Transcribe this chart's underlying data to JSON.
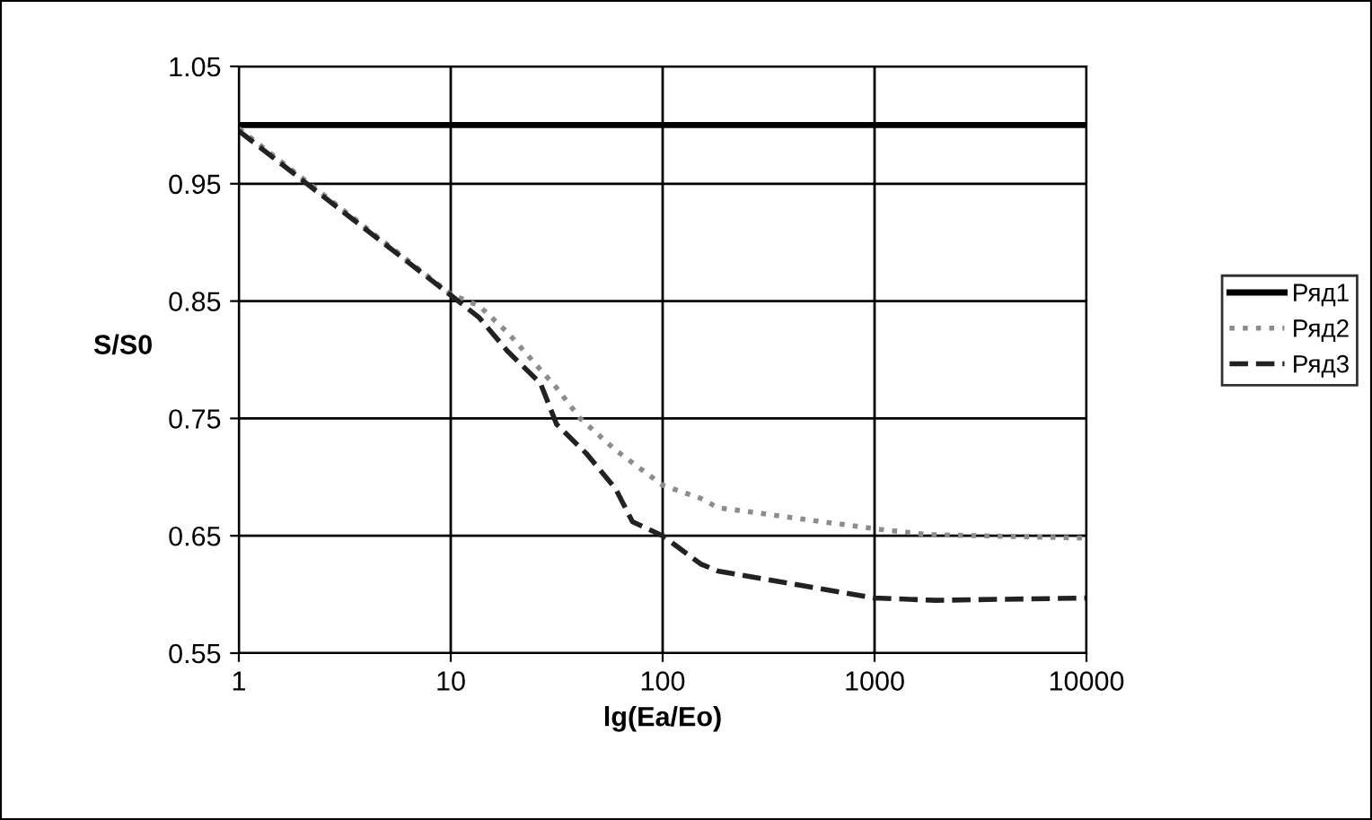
{
  "chart_data": {
    "type": "line",
    "xlabel": "lg(Ea/Eo)",
    "ylabel": "S/S0",
    "log": "x",
    "grid": true,
    "legend": "right",
    "marker": "none",
    "xlim": [
      1,
      10000
    ],
    "xticks": [
      1,
      10,
      100,
      1000,
      10000
    ],
    "ylim": [
      0.55,
      1.05
    ],
    "yticks": [
      0.55,
      0.65,
      0.75,
      0.85,
      0.95,
      1.05
    ],
    "series": [
      {
        "name": "Ряд1",
        "color": "#000000",
        "line_style": "solid",
        "x": [
          1,
          10000
        ],
        "values": [
          1.0,
          1.0
        ]
      },
      {
        "name": "Ряд2",
        "color": "#8c8c8c",
        "line_style": "dotted",
        "x": [
          1,
          10,
          13.6,
          18.6,
          31.6,
          40.8,
          60,
          100,
          151,
          182,
          1000,
          1780,
          10000
        ],
        "values": [
          0.997,
          0.856,
          0.846,
          0.823,
          0.776,
          0.75,
          0.723,
          0.693,
          0.682,
          0.674,
          0.656,
          0.651,
          0.648
        ]
      },
      {
        "name": "Ряд3",
        "color": "#222222",
        "line_style": "dashed",
        "x": [
          1,
          10,
          13.6,
          18.6,
          26.5,
          31.6,
          43.7,
          60,
          72,
          100,
          151,
          182,
          1000,
          1950,
          10000
        ],
        "values": [
          0.995,
          0.855,
          0.836,
          0.807,
          0.78,
          0.745,
          0.72,
          0.69,
          0.662,
          0.65,
          0.626,
          0.62,
          0.597,
          0.595,
          0.597
        ]
      }
    ]
  }
}
